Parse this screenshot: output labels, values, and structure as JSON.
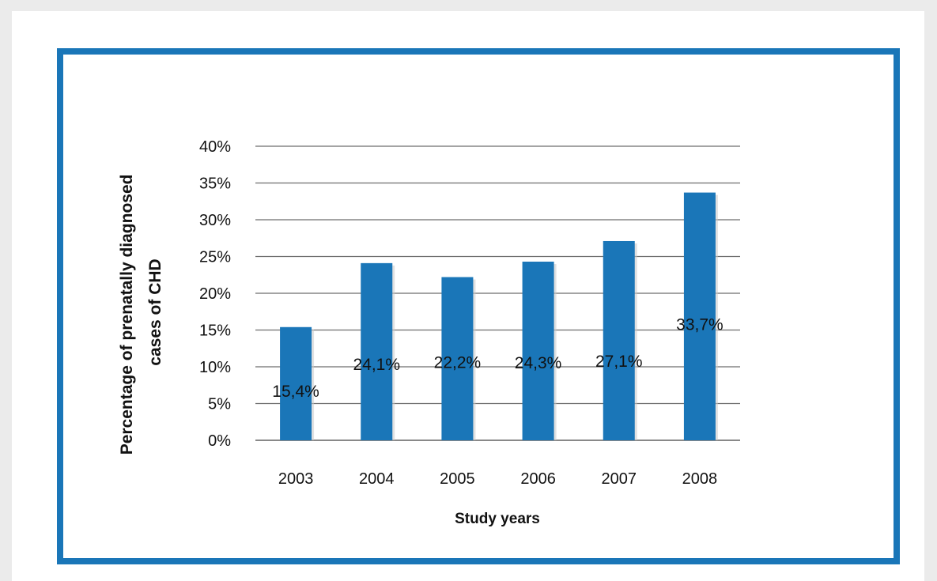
{
  "chart_data": {
    "type": "bar",
    "categories": [
      "2003",
      "2004",
      "2005",
      "2006",
      "2007",
      "2008"
    ],
    "values": [
      15.4,
      24.1,
      22.2,
      24.3,
      27.1,
      33.7
    ],
    "data_labels": [
      "15,4%",
      "24,1%",
      "22,2%",
      "24,3%",
      "27,1%",
      "33,7%"
    ],
    "title": "",
    "xlabel": "Study years",
    "ylabel_lines": [
      "Percentage of prenatally diagnosed",
      "cases of CHD"
    ],
    "ylim": [
      0,
      40
    ],
    "yticks": [
      0,
      5,
      10,
      15,
      20,
      25,
      30,
      35,
      40
    ],
    "ytick_labels": [
      "0%",
      "5%",
      "10%",
      "15%",
      "20%",
      "25%",
      "30%",
      "35%",
      "40%"
    ],
    "grid": true,
    "legend": "none",
    "colors": {
      "bar": "#1a76b8",
      "frame": "#1a76b8",
      "grid": "#6e6e6e",
      "text": "#111111"
    }
  }
}
